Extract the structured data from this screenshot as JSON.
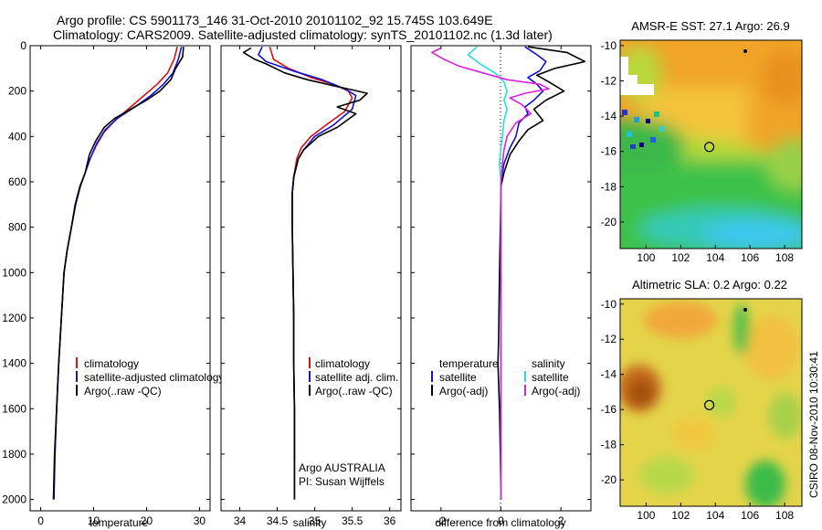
{
  "title": {
    "line1": "Argo profile: CS 5901173_146 31-Oct-2010 20101102_92 15.745S 103.649E",
    "line2": "Climatology: CARS2009. Satellite-adjusted climatology: synTS_20101102.nc (1.3d later)"
  },
  "side_label": "CSIRO 08-Nov-2010 10:30:41",
  "chart_data": [
    {
      "type": "line",
      "name": "temperature-panel",
      "xlabel": "temperature",
      "ylabel": "",
      "xlim": [
        -2,
        32
      ],
      "ylim": [
        2050,
        0
      ],
      "xticks": [
        0,
        10,
        20,
        30
      ],
      "yticks": [
        0,
        200,
        400,
        600,
        800,
        1000,
        1200,
        1400,
        1600,
        1800,
        2000
      ],
      "legend": [
        "climatology",
        "satellite-adjusted climatology",
        "Argo(..raw -QC)"
      ],
      "legend_placement": "lower-right",
      "series": [
        {
          "name": "climatology",
          "color": "#e01010",
          "points": [
            [
              25.8,
              5
            ],
            [
              25.2,
              60
            ],
            [
              24.0,
              120
            ],
            [
              22.0,
              170
            ],
            [
              19.5,
              220
            ],
            [
              17.0,
              270
            ],
            [
              14.0,
              330
            ],
            [
              12.0,
              380
            ],
            [
              10.5,
              440
            ],
            [
              9.3,
              500
            ],
            [
              8.4,
              560
            ],
            [
              7.5,
              620
            ],
            [
              6.6,
              700
            ],
            [
              5.8,
              800
            ],
            [
              5.0,
              900
            ],
            [
              4.4,
              1000
            ],
            [
              3.9,
              1200
            ],
            [
              3.4,
              1400
            ],
            [
              3.0,
              1600
            ],
            [
              2.7,
              1800
            ],
            [
              2.6,
              1820
            ]
          ]
        },
        {
          "name": "satellite-adjusted climatology",
          "color": "#1010e0",
          "points": [
            [
              26.6,
              5
            ],
            [
              26.0,
              60
            ],
            [
              25.0,
              120
            ],
            [
              23.2,
              170
            ],
            [
              20.8,
              220
            ],
            [
              17.8,
              270
            ],
            [
              14.5,
              320
            ],
            [
              12.2,
              370
            ],
            [
              10.6,
              430
            ],
            [
              9.3,
              500
            ],
            [
              8.4,
              560
            ],
            [
              7.5,
              620
            ],
            [
              6.6,
              700
            ],
            [
              5.8,
              800
            ],
            [
              5.0,
              900
            ],
            [
              4.4,
              1000
            ],
            [
              3.9,
              1200
            ],
            [
              3.4,
              1400
            ],
            [
              3.0,
              1600
            ],
            [
              2.7,
              1800
            ],
            [
              2.5,
              2000
            ]
          ]
        },
        {
          "name": "Argo(..raw -QC)",
          "color": "#000000",
          "points": [
            [
              27.0,
              5
            ],
            [
              26.8,
              50
            ],
            [
              25.5,
              100
            ],
            [
              24.6,
              150
            ],
            [
              22.5,
              200
            ],
            [
              20.0,
              240
            ],
            [
              17.0,
              280
            ],
            [
              14.0,
              320
            ],
            [
              12.0,
              360
            ],
            [
              10.4,
              420
            ],
            [
              9.2,
              480
            ],
            [
              8.4,
              560
            ],
            [
              7.4,
              620
            ],
            [
              6.5,
              700
            ],
            [
              5.8,
              800
            ],
            [
              5.0,
              900
            ],
            [
              4.4,
              1000
            ],
            [
              3.9,
              1200
            ],
            [
              3.4,
              1400
            ],
            [
              3.0,
              1600
            ],
            [
              2.6,
              1800
            ],
            [
              2.4,
              2000
            ]
          ]
        }
      ]
    },
    {
      "type": "line",
      "name": "salinity-panel",
      "xlabel": "salinity",
      "xlim": [
        33.75,
        36.15
      ],
      "ylim": [
        2050,
        0
      ],
      "xticks": [
        34,
        34.5,
        35,
        35.5,
        36
      ],
      "yticks": [
        0,
        200,
        400,
        600,
        800,
        1000,
        1200,
        1400,
        1600,
        1800,
        2000
      ],
      "legend": [
        "climatology",
        "satellite adj. clim.",
        "Argo(..raw -QC)"
      ],
      "legend_placement": "lower-right",
      "annotation": [
        "Argo AUSTRALIA",
        "PI: Susan Wijffels"
      ],
      "series": [
        {
          "name": "climatology",
          "color": "#e01010",
          "points": [
            [
              34.4,
              5
            ],
            [
              34.45,
              60
            ],
            [
              34.65,
              100
            ],
            [
              34.95,
              140
            ],
            [
              35.25,
              170
            ],
            [
              35.45,
              200
            ],
            [
              35.5,
              230
            ],
            [
              35.4,
              290
            ],
            [
              35.15,
              350
            ],
            [
              34.95,
              400
            ],
            [
              34.82,
              450
            ],
            [
              34.76,
              500
            ],
            [
              34.72,
              580
            ],
            [
              34.7,
              650
            ],
            [
              34.7,
              800
            ],
            [
              34.71,
              1000
            ],
            [
              34.72,
              1200
            ],
            [
              34.72,
              1400
            ],
            [
              34.73,
              1600
            ],
            [
              34.73,
              1820
            ]
          ]
        },
        {
          "name": "satellite adj. clim.",
          "color": "#1010e0",
          "points": [
            [
              34.3,
              5
            ],
            [
              34.25,
              40
            ],
            [
              34.35,
              70
            ],
            [
              34.7,
              110
            ],
            [
              35.1,
              150
            ],
            [
              35.4,
              190
            ],
            [
              35.55,
              220
            ],
            [
              35.5,
              280
            ],
            [
              35.25,
              350
            ],
            [
              35.0,
              400
            ],
            [
              34.85,
              460
            ],
            [
              34.78,
              500
            ],
            [
              34.72,
              580
            ],
            [
              34.7,
              650
            ],
            [
              34.7,
              800
            ],
            [
              34.71,
              1000
            ],
            [
              34.72,
              1200
            ],
            [
              34.72,
              1400
            ],
            [
              34.73,
              1600
            ],
            [
              34.73,
              1800
            ],
            [
              34.73,
              2000
            ]
          ]
        },
        {
          "name": "Argo(..raw -QC)",
          "color": "#000000",
          "points": [
            [
              34.15,
              10
            ],
            [
              34.05,
              30
            ],
            [
              34.2,
              60
            ],
            [
              34.35,
              80
            ],
            [
              34.6,
              120
            ],
            [
              34.9,
              150
            ],
            [
              35.3,
              180
            ],
            [
              35.7,
              210
            ],
            [
              35.6,
              240
            ],
            [
              35.3,
              270
            ],
            [
              35.55,
              300
            ],
            [
              35.3,
              360
            ],
            [
              35.05,
              400
            ],
            [
              34.85,
              460
            ],
            [
              34.78,
              500
            ],
            [
              34.72,
              580
            ],
            [
              34.7,
              650
            ],
            [
              34.7,
              800
            ],
            [
              34.71,
              1000
            ],
            [
              34.72,
              1200
            ],
            [
              34.72,
              1400
            ],
            [
              34.73,
              1600
            ],
            [
              34.73,
              1800
            ],
            [
              34.73,
              2000
            ]
          ]
        }
      ]
    },
    {
      "type": "line",
      "name": "difference-panel",
      "xlabel": "difference from climatology",
      "xlim": [
        -3.0,
        3.0
      ],
      "ylim": [
        2050,
        0
      ],
      "xticks": [
        -2,
        0,
        2
      ],
      "yticks": [
        0,
        200,
        400,
        600,
        800,
        1000,
        1200,
        1400,
        1600,
        1800,
        2000
      ],
      "legend_left_title": "temperature",
      "legend_right_title": "salinity",
      "legend": [
        "satellite",
        "Argo(-adj)",
        "satellite",
        "Argo(-adj)"
      ],
      "legend_placement": "lower-center",
      "zero_line": "dotted",
      "series": [
        {
          "name": "temperature satellite",
          "color": "#1010e0",
          "points": [
            [
              0.8,
              5
            ],
            [
              1.2,
              40
            ],
            [
              1.5,
              70
            ],
            [
              1.3,
              110
            ],
            [
              0.9,
              140
            ],
            [
              1.2,
              170
            ],
            [
              1.4,
              200
            ],
            [
              1.1,
              240
            ],
            [
              0.8,
              270
            ],
            [
              0.9,
              300
            ],
            [
              0.6,
              340
            ],
            [
              0.5,
              400
            ],
            [
              0.3,
              450
            ],
            [
              0.1,
              520
            ],
            [
              0.0,
              600
            ],
            [
              0.0,
              1000
            ],
            [
              0.0,
              1500
            ],
            [
              0.0,
              2000
            ]
          ]
        },
        {
          "name": "temperature Argo(-adj)",
          "color": "#000000",
          "points": [
            [
              0.9,
              5
            ],
            [
              2.2,
              30
            ],
            [
              2.8,
              70
            ],
            [
              1.8,
              100
            ],
            [
              1.2,
              130
            ],
            [
              1.6,
              160
            ],
            [
              2.1,
              200
            ],
            [
              1.5,
              240
            ],
            [
              1.1,
              280
            ],
            [
              1.4,
              330
            ],
            [
              0.9,
              370
            ],
            [
              0.6,
              420
            ],
            [
              0.3,
              480
            ],
            [
              0.1,
              560
            ],
            [
              0.0,
              620
            ],
            [
              -0.02,
              800
            ],
            [
              -0.05,
              1000
            ],
            [
              -0.08,
              1300
            ],
            [
              -0.1,
              1400
            ],
            [
              -0.05,
              1600
            ],
            [
              -0.02,
              1800
            ],
            [
              0.0,
              2000
            ]
          ]
        },
        {
          "name": "salinity satellite",
          "color": "#20e0e0",
          "points": [
            [
              -0.8,
              5
            ],
            [
              -1.1,
              40
            ],
            [
              -0.7,
              80
            ],
            [
              -0.2,
              120
            ],
            [
              0.1,
              160
            ],
            [
              0.2,
              200
            ],
            [
              0.1,
              240
            ],
            [
              0.2,
              280
            ],
            [
              0.1,
              330
            ],
            [
              0.05,
              400
            ],
            [
              0.0,
              450
            ],
            [
              -0.05,
              520
            ],
            [
              0.0,
              600
            ],
            [
              0.0,
              2000
            ]
          ]
        },
        {
          "name": "salinity Argo(-adj)",
          "color": "#e020e0",
          "points": [
            [
              -2.0,
              10
            ],
            [
              -2.3,
              30
            ],
            [
              -1.9,
              60
            ],
            [
              -1.4,
              90
            ],
            [
              -0.6,
              120
            ],
            [
              0.2,
              150
            ],
            [
              1.3,
              170
            ],
            [
              1.6,
              190
            ],
            [
              0.8,
              210
            ],
            [
              0.3,
              230
            ],
            [
              0.7,
              260
            ],
            [
              1.0,
              300
            ],
            [
              0.5,
              340
            ],
            [
              0.2,
              400
            ],
            [
              0.1,
              460
            ],
            [
              0.05,
              520
            ],
            [
              0.0,
              600
            ],
            [
              0.0,
              2000
            ]
          ]
        }
      ]
    },
    {
      "type": "heatmap",
      "name": "sst-map",
      "title": "AMSR-E SST: 27.1  Argo: 26.9",
      "xlim": [
        98.5,
        109.0
      ],
      "ylim": [
        -21.5,
        -9.7
      ],
      "xticks": [
        100,
        102,
        104,
        106,
        108
      ],
      "yticks": [
        -10,
        -12,
        -14,
        -16,
        -18,
        -20
      ],
      "argo_position": [
        103.649,
        -15.745
      ]
    },
    {
      "type": "heatmap",
      "name": "sla-map",
      "title": "Altimetric SLA: 0.2  Argo: 0.22",
      "xlim": [
        98.5,
        109.0
      ],
      "ylim": [
        -21.5,
        -9.7
      ],
      "xticks": [
        100,
        102,
        104,
        106,
        108
      ],
      "yticks": [
        -10,
        -12,
        -14,
        -16,
        -18,
        -20
      ],
      "argo_position": [
        103.649,
        -15.745
      ]
    }
  ]
}
